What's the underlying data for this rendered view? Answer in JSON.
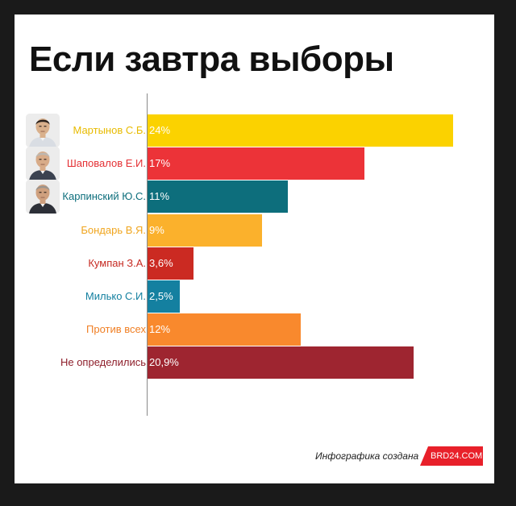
{
  "chart_data": {
    "type": "bar",
    "orientation": "horizontal",
    "title": "Если завтра выборы",
    "xlim": [
      0,
      26
    ],
    "grid": false,
    "legend": "none",
    "categories": [
      "Мартынов С.Б.",
      "Шаповалов Е.И.",
      "Карпинский Ю.С.",
      "Бондарь В.Я.",
      "Кумпан З.А.",
      "Милько С.И.",
      "Против всех",
      "Не определились"
    ],
    "values": [
      24,
      17,
      11,
      9,
      3.6,
      2.5,
      12,
      20.9
    ],
    "value_labels": [
      "24%",
      "17%",
      "11%",
      "9%",
      "3,6%",
      "2,5%",
      "12%",
      "20,9%"
    ],
    "colors": [
      "#fbd200",
      "#ec3338",
      "#0d6e7c",
      "#fbb12c",
      "#cb2a22",
      "#1480a0",
      "#f9892d",
      "#9e2530"
    ],
    "label_colors": [
      "#e8bb00",
      "#e43034",
      "#0d6e7c",
      "#f0a51e",
      "#c62a22",
      "#1480a0",
      "#f07f24",
      "#8e1f2b"
    ],
    "avatars": [
      "portrait-martynov",
      "portrait-shapovalov",
      "portrait-karpinsky"
    ]
  },
  "credit": {
    "text": "Инфографика создана",
    "badge": "BRD24.COM",
    "badge_color": "#e8202a"
  }
}
